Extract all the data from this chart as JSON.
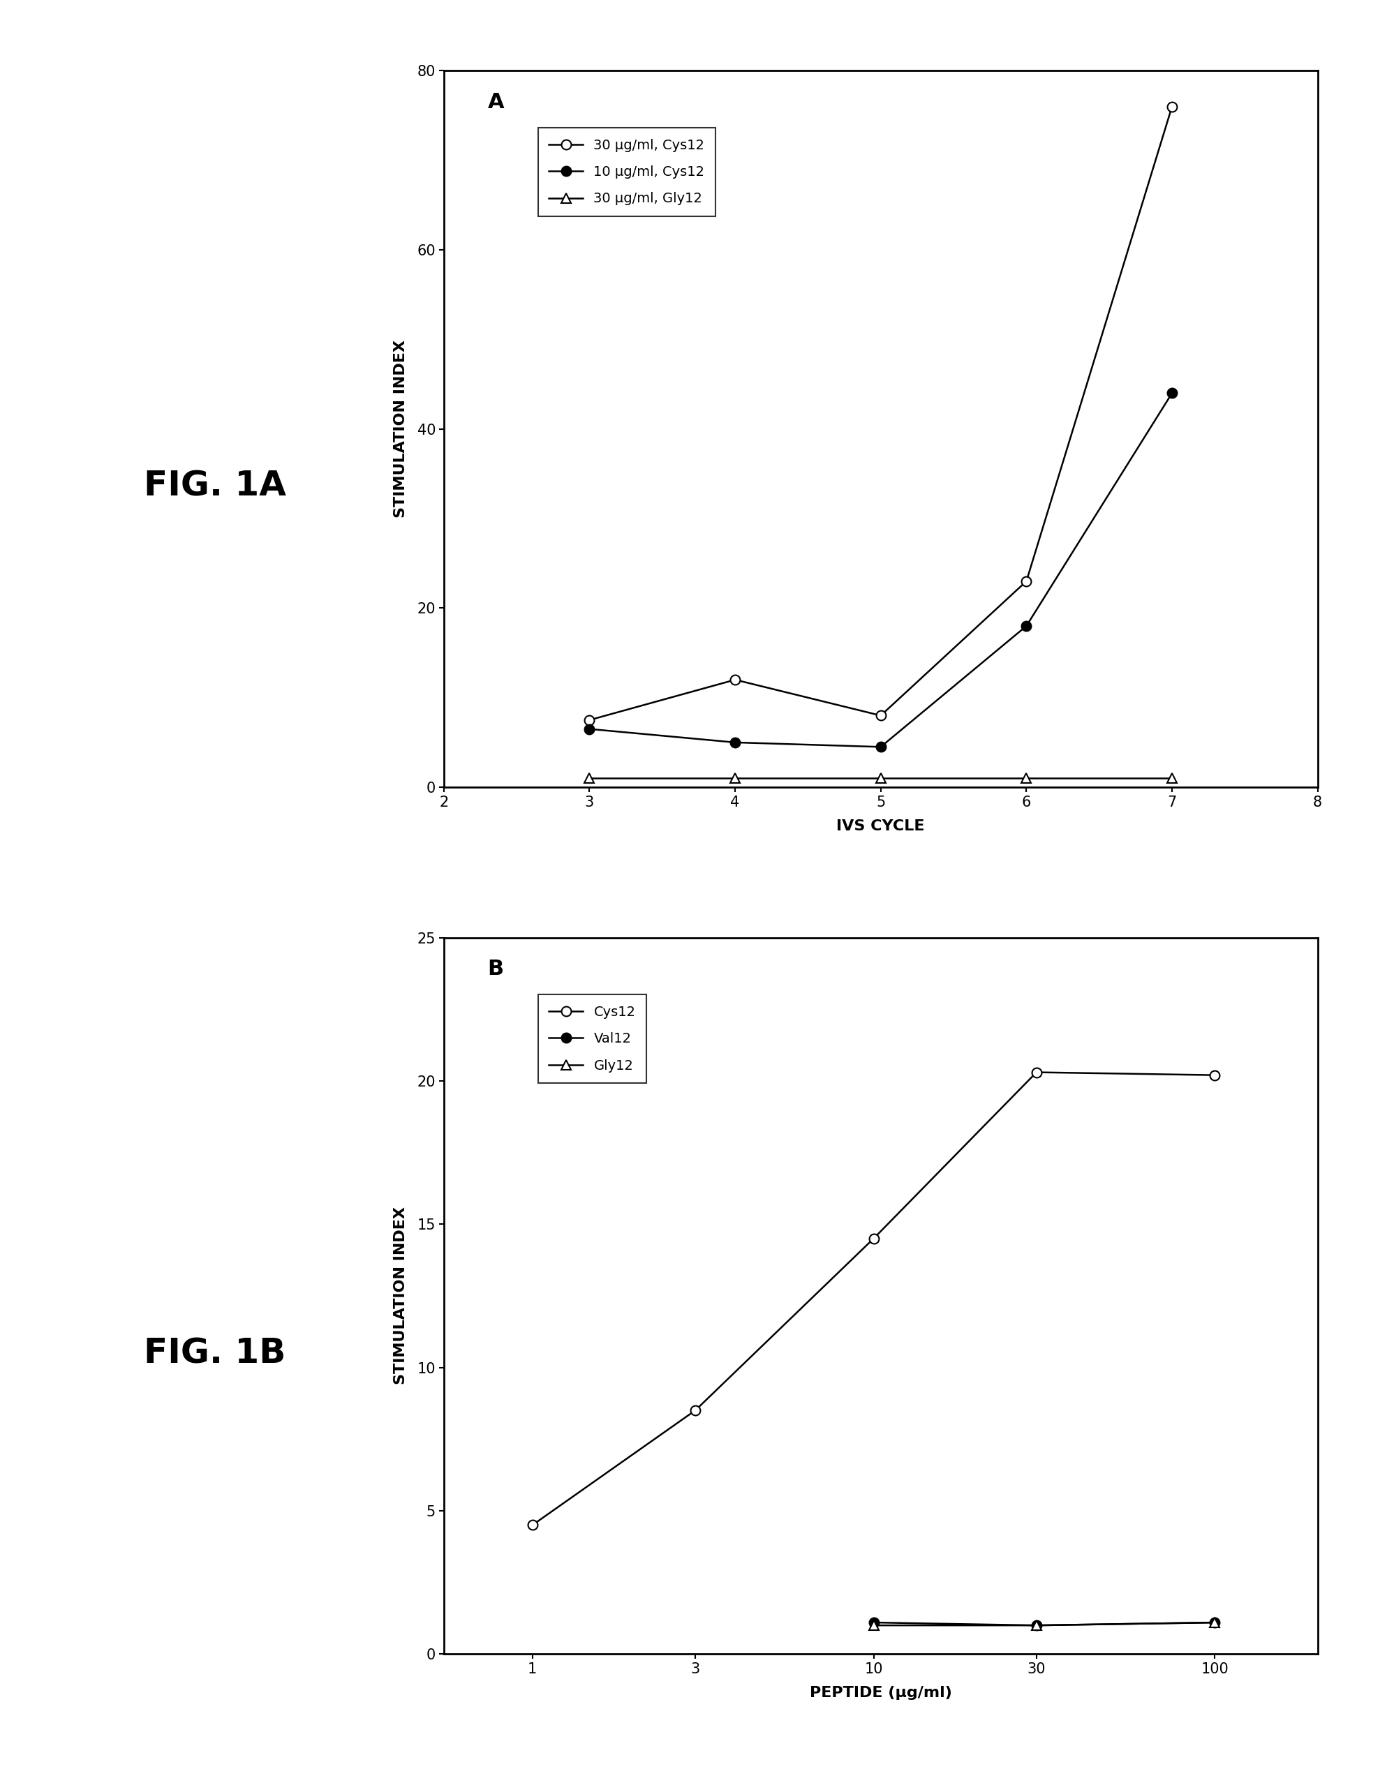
{
  "panel_A": {
    "label": "A",
    "series": [
      {
        "label": "30 μg/ml, Cys12",
        "x": [
          3,
          4,
          5,
          6,
          7
        ],
        "y": [
          7.5,
          12,
          8,
          23,
          76
        ],
        "marker": "o",
        "markerfacecolor": "white",
        "color": "black",
        "linewidth": 1.8
      },
      {
        "label": "10 μg/ml, Cys12",
        "x": [
          3,
          4,
          5,
          6,
          7
        ],
        "y": [
          6.5,
          5,
          4.5,
          18,
          44
        ],
        "marker": "o",
        "markerfacecolor": "black",
        "color": "black",
        "linewidth": 1.8
      },
      {
        "label": "30 μg/ml, Gly12",
        "x": [
          3,
          4,
          5,
          6,
          7
        ],
        "y": [
          1.0,
          1.0,
          1.0,
          1.0,
          1.0
        ],
        "marker": "^",
        "markerfacecolor": "white",
        "color": "black",
        "linewidth": 1.8
      }
    ],
    "xlabel": "IVS CYCLE",
    "ylabel": "STIMULATION INDEX",
    "xlim": [
      2,
      8
    ],
    "ylim": [
      0,
      80
    ],
    "yticks": [
      0,
      20,
      40,
      60,
      80
    ],
    "xticks": [
      2,
      3,
      4,
      5,
      6,
      7,
      8
    ],
    "fig_label": "FIG. 1A"
  },
  "panel_B": {
    "label": "B",
    "series": [
      {
        "label": "Cys12",
        "x": [
          1,
          3,
          10,
          30,
          100
        ],
        "y": [
          4.5,
          8.5,
          14.5,
          20.3,
          20.2
        ],
        "marker": "o",
        "markerfacecolor": "white",
        "color": "black",
        "linewidth": 1.8
      },
      {
        "label": "Val12",
        "x": [
          10,
          30,
          100
        ],
        "y": [
          1.1,
          1.0,
          1.1
        ],
        "marker": "o",
        "markerfacecolor": "black",
        "color": "black",
        "linewidth": 1.8
      },
      {
        "label": "Gly12",
        "x": [
          10,
          30,
          100
        ],
        "y": [
          1.0,
          1.0,
          1.1
        ],
        "marker": "^",
        "markerfacecolor": "white",
        "color": "black",
        "linewidth": 1.8
      }
    ],
    "xlabel": "PEPTIDE (μg/ml)",
    "ylabel": "STIMULATION INDEX",
    "xlim_log": [
      0.55,
      200
    ],
    "ylim": [
      0,
      25
    ],
    "yticks": [
      0,
      5,
      10,
      15,
      20,
      25
    ],
    "xticks_log": [
      1,
      3,
      10,
      30,
      100
    ],
    "fig_label": "FIG. 1B"
  },
  "background_color": "#ffffff",
  "fig_label_fontsize": 36,
  "axis_label_fontsize": 16,
  "tick_fontsize": 15,
  "legend_fontsize": 14,
  "panel_label_fontsize": 22,
  "marker_size": 10
}
